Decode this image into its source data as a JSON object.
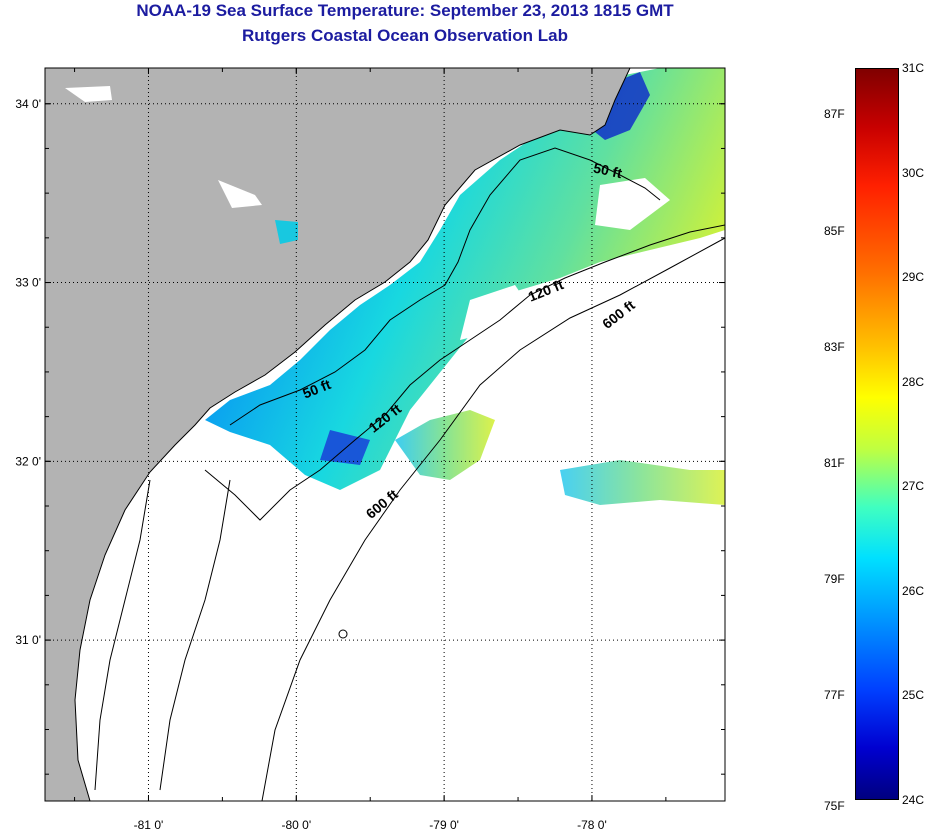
{
  "header": {
    "title": "NOAA-19 Sea Surface Temperature:  September 23, 2013 1815 GMT",
    "subtitle": "Rutgers Coastal Ocean Observation Lab"
  },
  "map": {
    "lon_range": [
      -81.7,
      -77.1
    ],
    "lat_range": [
      30.1,
      34.2
    ],
    "lon_ticks": [
      {
        "value": -81,
        "label": "-81 0'"
      },
      {
        "value": -80,
        "label": "-80 0'"
      },
      {
        "value": -79,
        "label": "-79 0'"
      },
      {
        "value": -78,
        "label": "-78 0'"
      }
    ],
    "lat_ticks": [
      {
        "value": 34,
        "label": "34 0'"
      },
      {
        "value": 33,
        "label": "33 0'"
      },
      {
        "value": 32,
        "label": "32 0'"
      },
      {
        "value": 31,
        "label": "31 0'"
      }
    ],
    "grid": true,
    "contour_labels": [
      {
        "text": "50 ft",
        "lon": -77.9,
        "lat": 33.6,
        "angle": 12
      },
      {
        "text": "120 ft",
        "lon": -78.3,
        "lat": 32.93,
        "angle": -22
      },
      {
        "text": "600 ft",
        "lon": -77.8,
        "lat": 32.8,
        "angle": -38
      },
      {
        "text": "50 ft",
        "lon": -79.85,
        "lat": 32.38,
        "angle": -22
      },
      {
        "text": "120 ft",
        "lon": -79.38,
        "lat": 32.22,
        "angle": -38
      },
      {
        "text": "600 ft",
        "lon": -79.4,
        "lat": 31.74,
        "angle": -40
      }
    ],
    "colors": {
      "land": "#b3b3b3",
      "water_no_data": "#ffffff",
      "cold": "#0000c8",
      "warm": "#ffff00"
    }
  },
  "colorbar": {
    "celsius_labels": [
      "31C",
      "30C",
      "29C",
      "28C",
      "27C",
      "26C",
      "25C",
      "24C"
    ],
    "fahrenheit_labels": [
      "87F",
      "85F",
      "83F",
      "81F",
      "79F",
      "77F",
      "75F"
    ],
    "c_range": [
      24,
      31
    ],
    "f_range": [
      75.2,
      87.8
    ]
  }
}
